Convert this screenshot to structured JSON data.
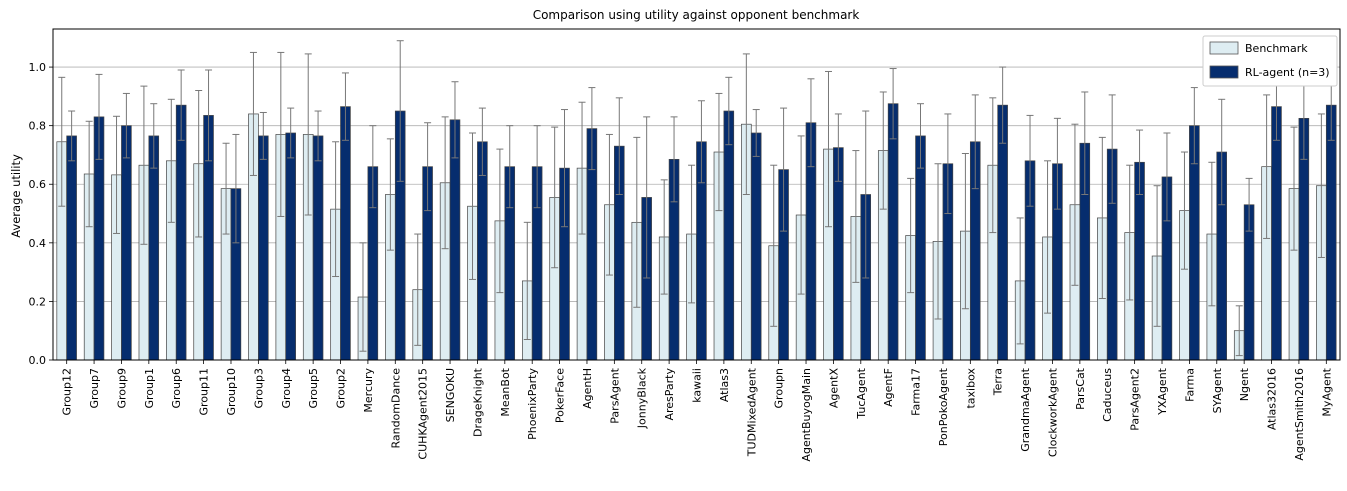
{
  "chart_data": {
    "type": "bar",
    "title": "Comparison using utility against opponent benchmark",
    "xlabel": "",
    "ylabel": "Average utility",
    "ylim": [
      0,
      1.13
    ],
    "yticks": [
      "0.0",
      "0.2",
      "0.4",
      "0.6",
      "0.8",
      "1.0"
    ],
    "grid": "horizontal",
    "legend_position": "top-right",
    "categories": [
      "Group12",
      "Group7",
      "Group9",
      "Group1",
      "Group6",
      "Group11",
      "Group10",
      "Group3",
      "Group4",
      "Group5",
      "Group2",
      "Mercury",
      "RandomDance",
      "CUHKAgent2015",
      "SENGOKU",
      "DrageKnight",
      "MeanBot",
      "PhoenixParty",
      "PokerFace",
      "AgentH",
      "ParsAgent",
      "JonnyBlack",
      "AresParty",
      "kawaii",
      "Atlas3",
      "TUDMixedAgent",
      "Groupn",
      "AgentBuyogMain",
      "AgentX",
      "TucAgent",
      "AgentF",
      "Farma17",
      "PonPokoAgent",
      "taxibox",
      "Terra",
      "GrandmaAgent",
      "ClockworkAgent",
      "ParsCat",
      "Caduceus",
      "ParsAgent2",
      "YXAgent",
      "Farma",
      "SYAgent",
      "Ngent",
      "Atlas32016",
      "AgentSmith2016",
      "MyAgent"
    ],
    "series": [
      {
        "name": "Benchmark",
        "color": "#deedf2",
        "values": [
          0.745,
          0.635,
          0.632,
          0.665,
          0.68,
          0.67,
          0.585,
          0.84,
          0.77,
          0.77,
          0.515,
          0.215,
          0.565,
          0.24,
          0.605,
          0.525,
          0.475,
          0.27,
          0.555,
          0.655,
          0.53,
          0.47,
          0.42,
          0.43,
          0.71,
          0.805,
          0.39,
          0.495,
          0.72,
          0.49,
          0.715,
          0.425,
          0.405,
          0.44,
          0.665,
          0.27,
          0.42,
          0.53,
          0.485,
          0.435,
          0.355,
          0.51,
          0.43,
          0.1,
          0.66,
          0.585,
          0.595
        ],
        "errors": [
          0.22,
          0.18,
          0.2,
          0.27,
          0.21,
          0.25,
          0.155,
          0.21,
          0.28,
          0.275,
          0.23,
          0.185,
          0.19,
          0.19,
          0.225,
          0.25,
          0.245,
          0.2,
          0.24,
          0.225,
          0.24,
          0.29,
          0.195,
          0.235,
          0.2,
          0.24,
          0.275,
          0.27,
          0.265,
          0.225,
          0.2,
          0.195,
          0.265,
          0.265,
          0.23,
          0.215,
          0.26,
          0.275,
          0.275,
          0.23,
          0.24,
          0.2,
          0.245,
          0.085,
          0.245,
          0.21,
          0.245
        ]
      },
      {
        "name": "RL-agent (n=3)",
        "color": "#062d6e",
        "values": [
          0.765,
          0.83,
          0.8,
          0.765,
          0.87,
          0.835,
          0.585,
          0.765,
          0.775,
          0.765,
          0.865,
          0.66,
          0.85,
          0.66,
          0.82,
          0.745,
          0.66,
          0.66,
          0.655,
          0.79,
          0.73,
          0.555,
          0.685,
          0.745,
          0.85,
          0.775,
          0.65,
          0.81,
          0.725,
          0.565,
          0.875,
          0.765,
          0.67,
          0.745,
          0.87,
          0.68,
          0.67,
          0.74,
          0.72,
          0.675,
          0.625,
          0.8,
          0.71,
          0.53,
          0.865,
          0.825,
          0.87
        ],
        "errors": [
          0.085,
          0.145,
          0.11,
          0.11,
          0.12,
          0.155,
          0.185,
          0.08,
          0.085,
          0.085,
          0.115,
          0.14,
          0.24,
          0.15,
          0.13,
          0.115,
          0.14,
          0.14,
          0.2,
          0.14,
          0.165,
          0.275,
          0.145,
          0.14,
          0.115,
          0.08,
          0.21,
          0.15,
          0.115,
          0.285,
          0.12,
          0.11,
          0.17,
          0.16,
          0.13,
          0.155,
          0.155,
          0.175,
          0.185,
          0.11,
          0.15,
          0.13,
          0.18,
          0.09,
          0.115,
          0.14,
          0.12
        ]
      }
    ]
  }
}
